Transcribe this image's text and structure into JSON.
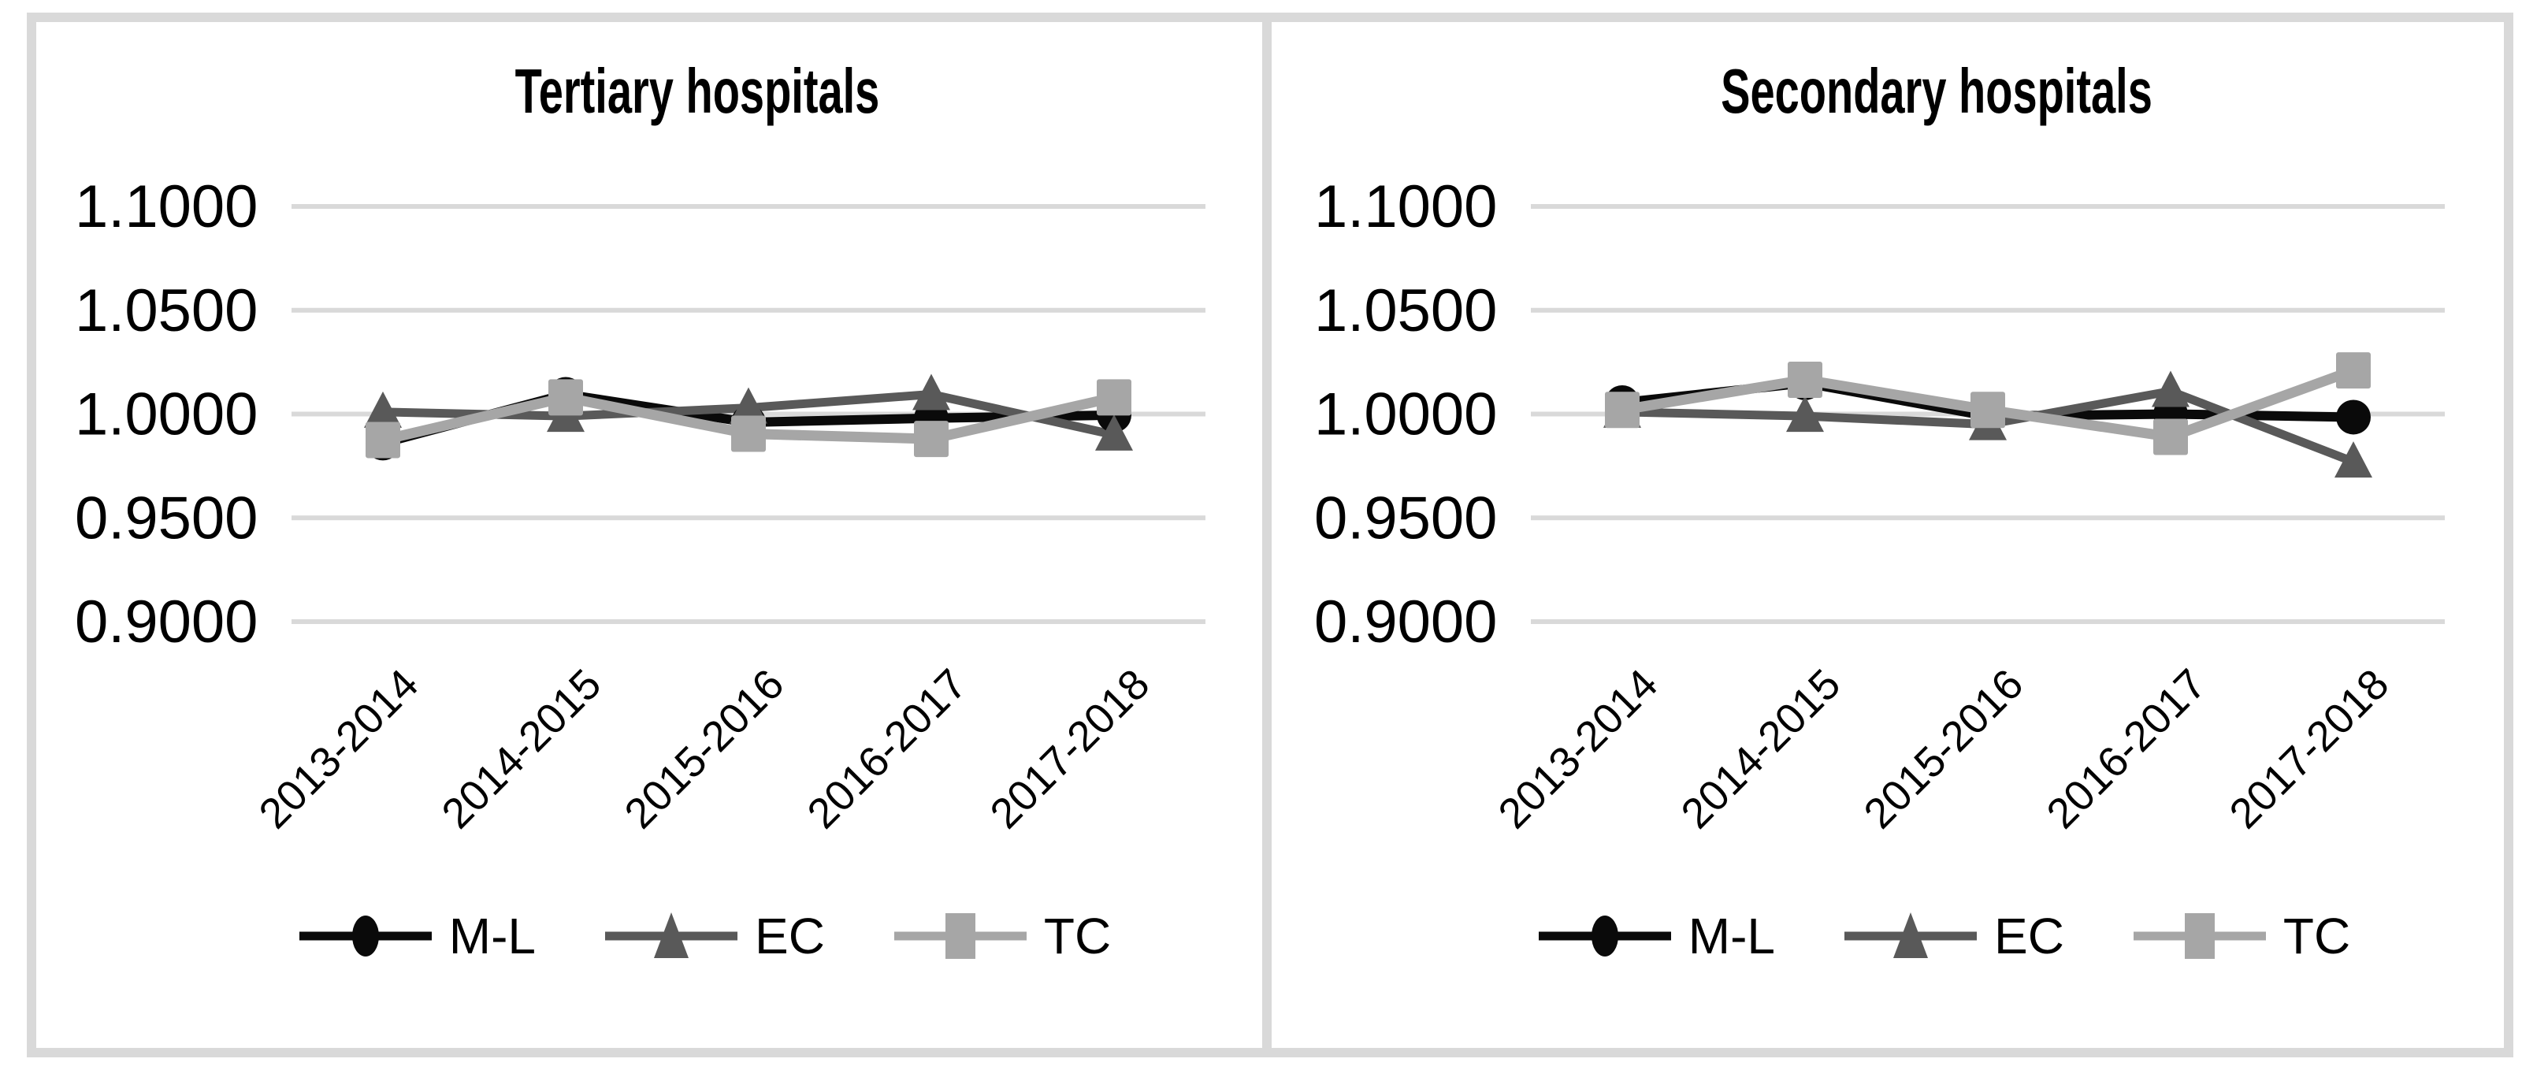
{
  "colors": {
    "ml": "#0a0a0a",
    "ec": "#595959",
    "tc": "#a6a6a6",
    "grid": "#d9d9d9",
    "border": "#d9d9d9",
    "background": "#ffffff",
    "text": "#000000"
  },
  "chart_data": [
    {
      "type": "line",
      "title": "Tertiary hospitals",
      "categories": [
        "2013-2014",
        "2014-2015",
        "2015-2016",
        "2016-2017",
        "2017-2018"
      ],
      "yticks": [
        "1.1000",
        "1.0500",
        "1.0000",
        "0.9500",
        "0.9000"
      ],
      "ylim": [
        0.9,
        1.1
      ],
      "grid": true,
      "legend_position": "bottom",
      "series": [
        {
          "name": "M-L",
          "marker": "circle",
          "color": "#0a0a0a",
          "values": [
            0.986,
            1.0095,
            0.996,
            0.998,
            0.9995
          ]
        },
        {
          "name": "EC",
          "marker": "triangle",
          "color": "#595959",
          "values": [
            1.001,
            0.999,
            1.003,
            1.0095,
            0.99
          ]
        },
        {
          "name": "TC",
          "marker": "square",
          "color": "#a6a6a6",
          "values": [
            0.9875,
            1.008,
            0.9905,
            0.988,
            1.008
          ]
        }
      ]
    },
    {
      "type": "line",
      "title": "Secondary hospitals",
      "categories": [
        "2013-2014",
        "2014-2015",
        "2015-2016",
        "2016-2017",
        "2017-2018"
      ],
      "yticks": [
        "1.1000",
        "1.0500",
        "1.0000",
        "0.9500",
        "0.9000"
      ],
      "ylim": [
        0.9,
        1.1
      ],
      "grid": true,
      "legend_position": "bottom",
      "series": [
        {
          "name": "M-L",
          "marker": "circle",
          "color": "#0a0a0a",
          "values": [
            1.0055,
            1.015,
            0.999,
            1.0,
            0.9985
          ]
        },
        {
          "name": "EC",
          "marker": "triangle",
          "color": "#595959",
          "values": [
            1.001,
            0.999,
            0.995,
            1.011,
            0.977
          ]
        },
        {
          "name": "TC",
          "marker": "square",
          "color": "#a6a6a6",
          "values": [
            1.002,
            1.0165,
            1.002,
            0.989,
            1.021
          ]
        }
      ]
    }
  ]
}
